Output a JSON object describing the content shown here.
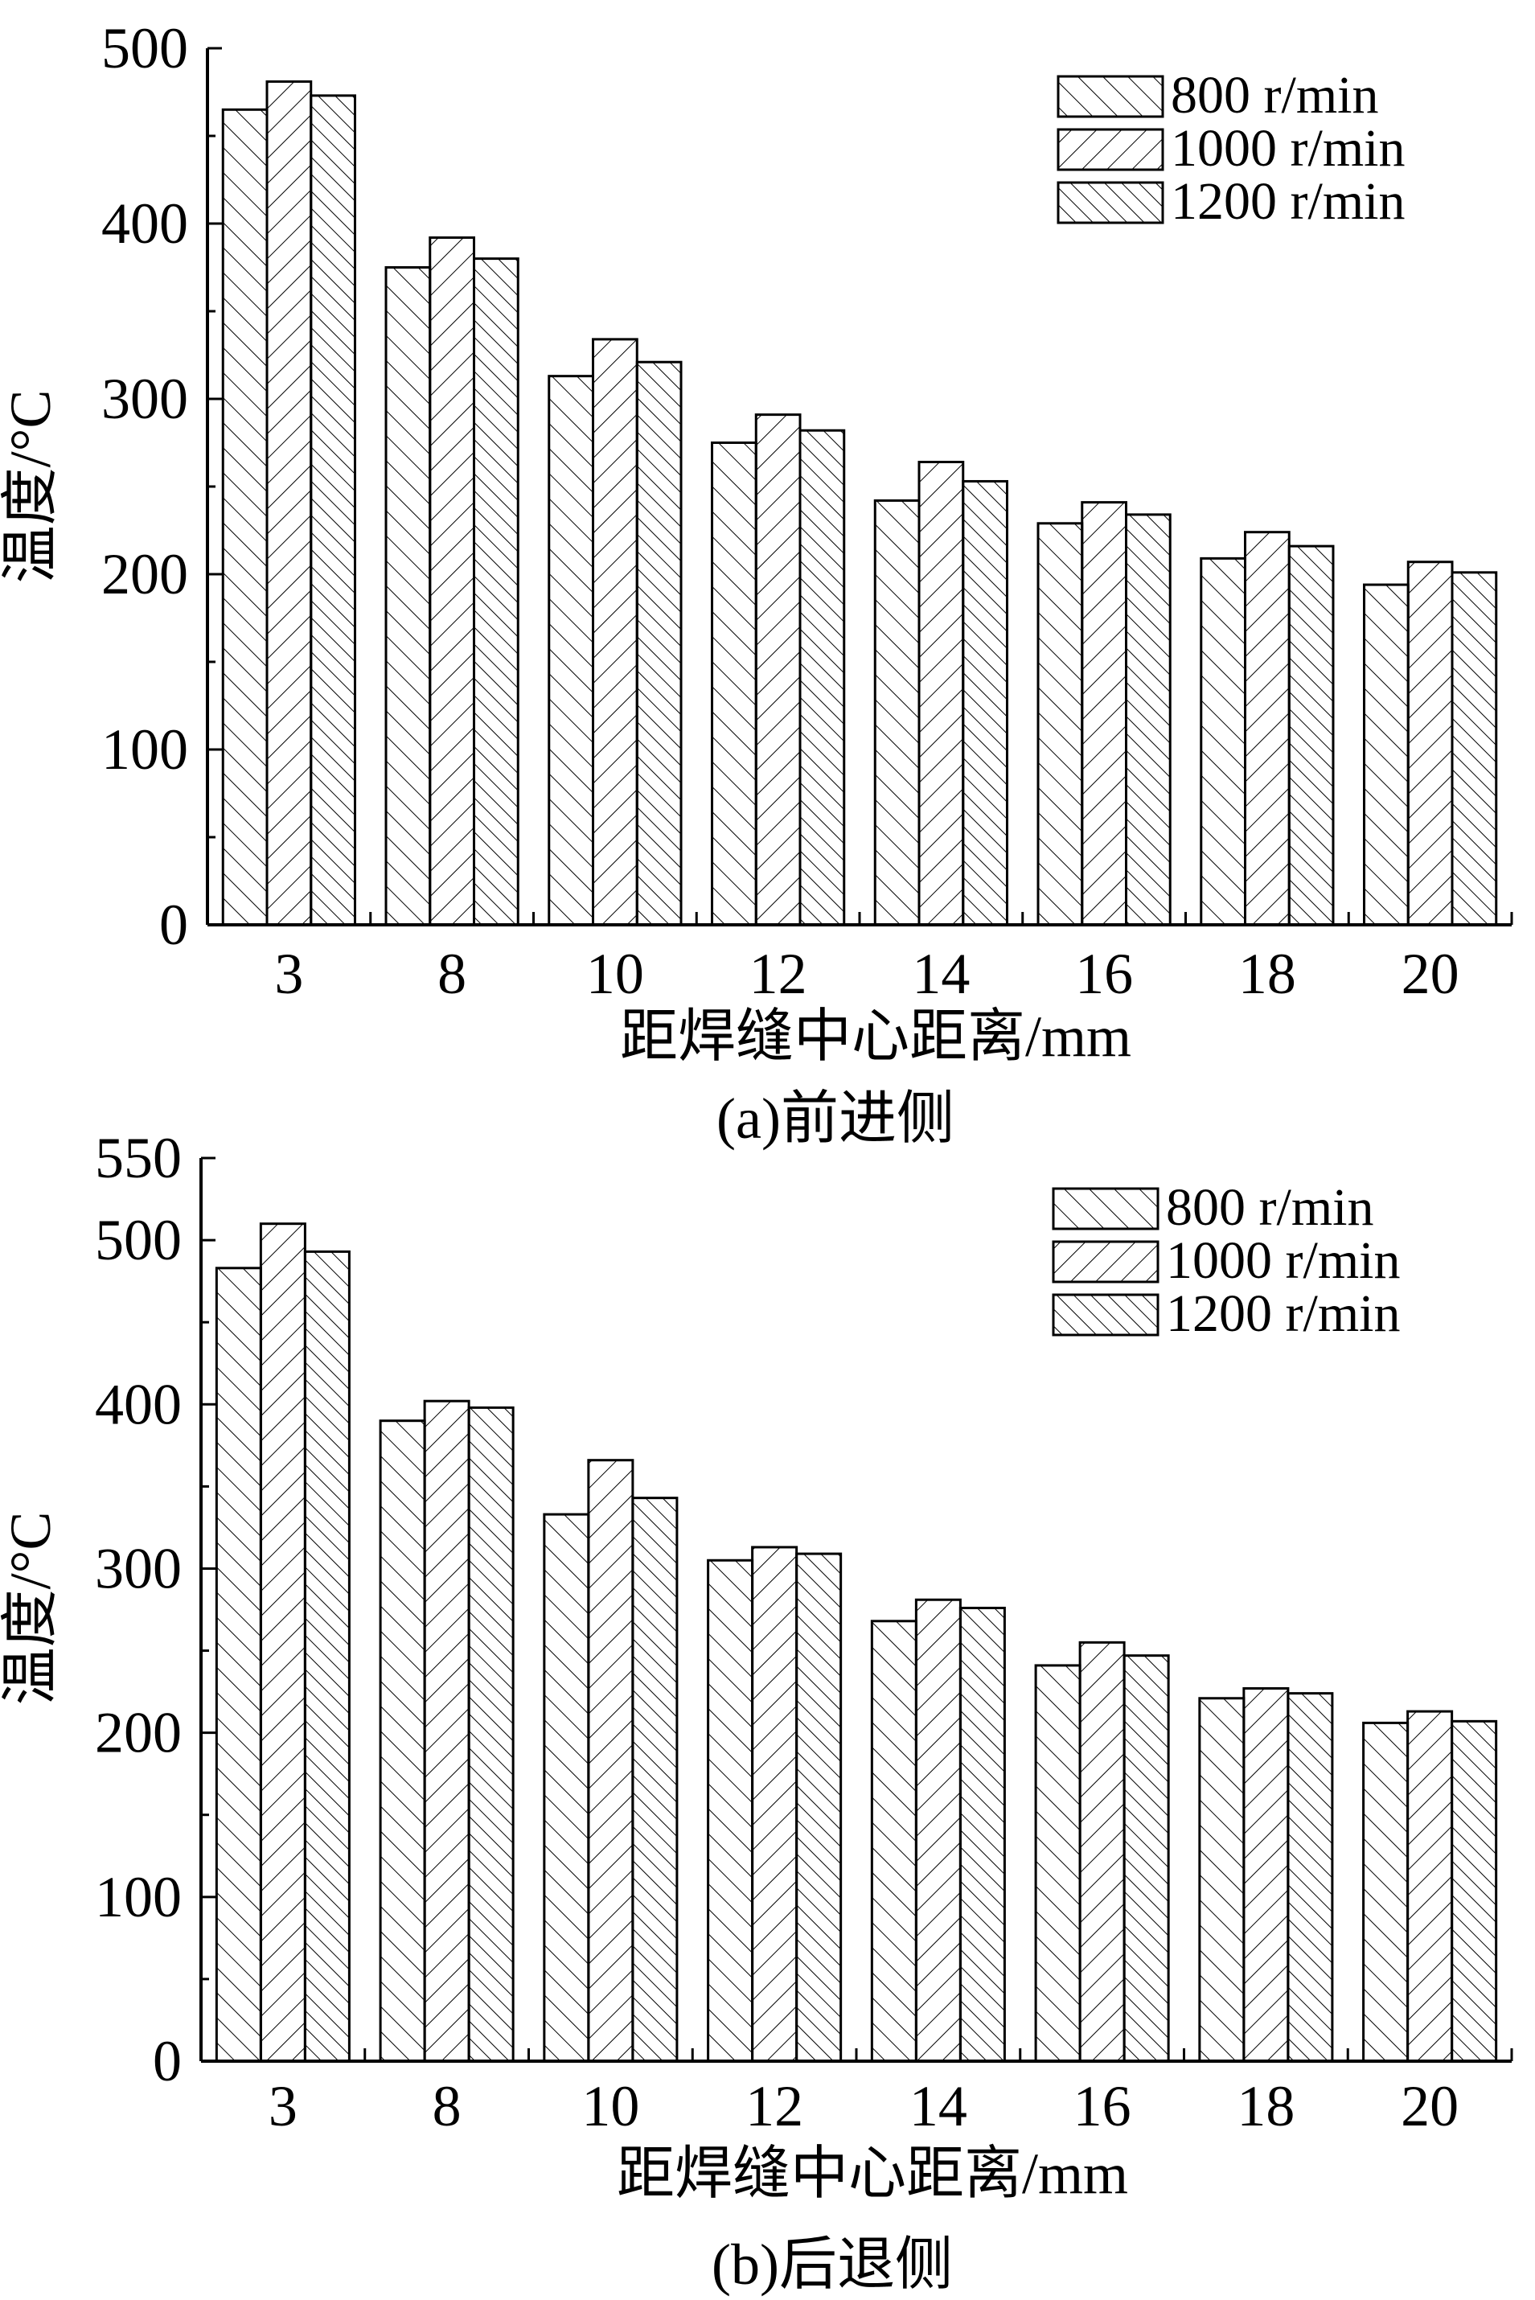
{
  "chart_data": [
    {
      "type": "bar",
      "caption": "(a)前进侧",
      "xlabel": "距焊缝中心距离/mm",
      "ylabel": "温度/°C",
      "categories": [
        "3",
        "8",
        "10",
        "12",
        "14",
        "16",
        "18",
        "20"
      ],
      "ylim": [
        0,
        500
      ],
      "yticks": [
        0,
        100,
        200,
        300,
        400,
        500
      ],
      "legend_position": "top-right",
      "series": [
        {
          "name": "800 r/min",
          "values": [
            465,
            375,
            313,
            275,
            242,
            229,
            209,
            194
          ]
        },
        {
          "name": "1000 r/min",
          "values": [
            481,
            392,
            334,
            291,
            264,
            241,
            224,
            207
          ]
        },
        {
          "name": "1200 r/min",
          "values": [
            473,
            380,
            321,
            282,
            253,
            234,
            216,
            201
          ]
        }
      ]
    },
    {
      "type": "bar",
      "caption": "(b)后退侧",
      "xlabel": "距焊缝中心距离/mm",
      "ylabel": "温度/°C",
      "categories": [
        "3",
        "8",
        "10",
        "12",
        "14",
        "16",
        "18",
        "20"
      ],
      "ylim": [
        0,
        550
      ],
      "yticks": [
        0,
        100,
        200,
        300,
        400,
        500,
        550
      ],
      "legend_position": "top-right",
      "series": [
        {
          "name": "800 r/min",
          "values": [
            483,
            390,
            333,
            305,
            268,
            241,
            221,
            206
          ]
        },
        {
          "name": "1000 r/min",
          "values": [
            510,
            402,
            366,
            313,
            281,
            255,
            227,
            213
          ]
        },
        {
          "name": "1200 r/min",
          "values": [
            493,
            398,
            343,
            309,
            276,
            247,
            224,
            207
          ]
        }
      ]
    }
  ]
}
